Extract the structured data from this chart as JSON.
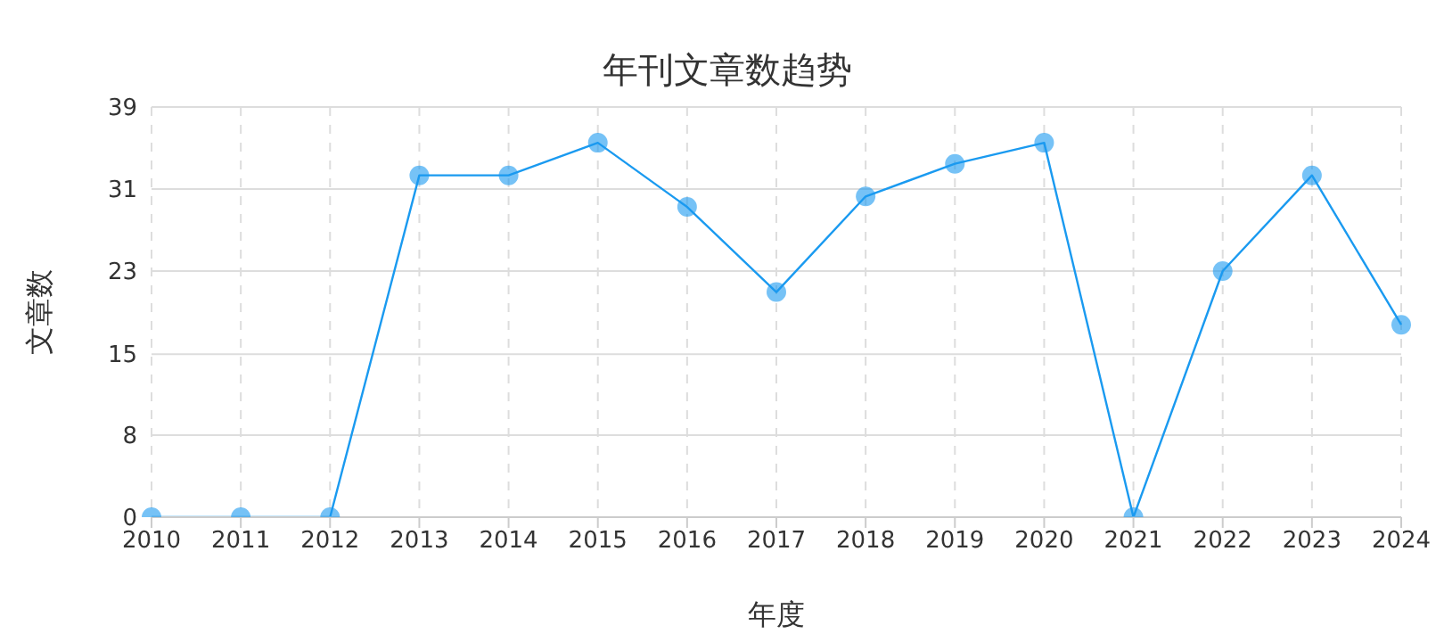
{
  "chart_data": {
    "type": "line",
    "title": "年刊文章数趋势",
    "xlabel": "年度",
    "ylabel": "文章数",
    "categories": [
      "2010",
      "2011",
      "2012",
      "2013",
      "2014",
      "2015",
      "2016",
      "2017",
      "2018",
      "2019",
      "2020",
      "2021",
      "2022",
      "2023",
      "2024"
    ],
    "series": [
      {
        "color": "#1a9af0",
        "values": [
          0,
          0,
          0,
          32.5,
          32.5,
          35.6,
          29.5,
          21.4,
          30.5,
          33.6,
          35.6,
          0,
          23.4,
          32.5,
          18.3
        ]
      }
    ],
    "ylim": [
      0,
      39
    ],
    "yticks": [
      0,
      {
        "value": 7.8,
        "label": "8"
      },
      {
        "value": 15.5,
        "label": "15"
      },
      {
        "value": 23.4,
        "label": "23"
      },
      {
        "value": 31.2,
        "label": "31"
      },
      39
    ],
    "grid": true,
    "marker": "circle",
    "line_style": "solid"
  }
}
